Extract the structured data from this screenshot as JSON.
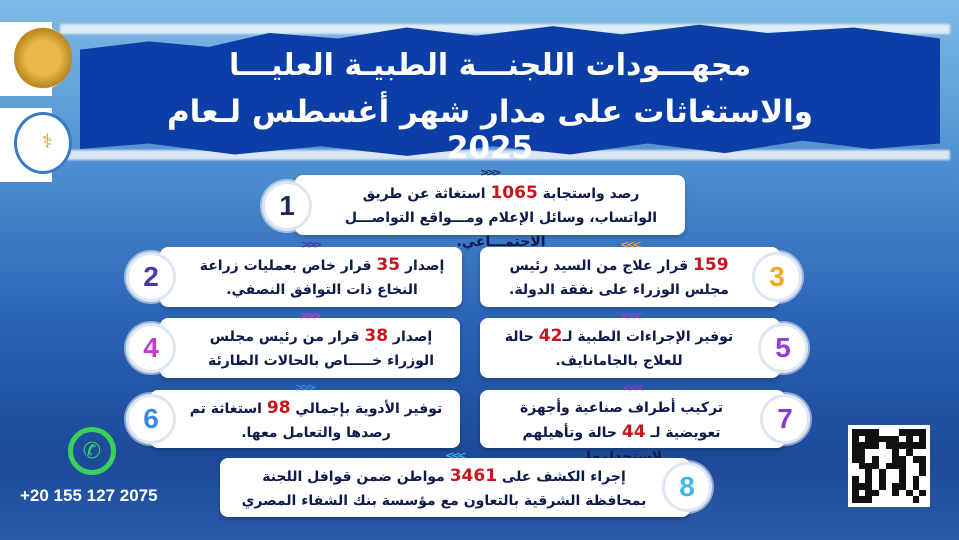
{
  "header": {
    "line1": "مجهـــودات اللجنـــة الطبيـة العليـــا",
    "line2": "والاستغاثات على مدار شهر أغسطس لـعام 2025"
  },
  "logos": [
    "egypt-eagle-emblem",
    "cabinet-medical-committee-logo"
  ],
  "cards": [
    {
      "num": "1",
      "pre": "رصد واستجابة ",
      "value": "1065",
      "post": " استغاثة عن طريق الواتساب، وسائل الإعلام ومـــواقع التواصـــل الاجتمـــاعي.",
      "color": "#1a2a5a"
    },
    {
      "num": "2",
      "pre": "إصدار ",
      "value": "35",
      "post": " قرار خاص بعمليات زراعة النخاع ذات التوافق النصفي.",
      "color": "#4a36a6"
    },
    {
      "num": "3",
      "pre": "",
      "value": "159",
      "post": " قرار علاج من السيد رئيس مجلس الوزراء على نفقة الدولة.",
      "color": "#f0a820"
    },
    {
      "num": "4",
      "pre": "إصدار ",
      "value": "38",
      "post": " قرار من رئيس مجلس الوزراء خـــــاص بالحالات الطارئة",
      "color": "#c03cd0"
    },
    {
      "num": "5",
      "pre": "توفير الإجراءات الطبية لـ",
      "value": "42",
      "post": " حالة للعلاج بالجامانايف.",
      "color": "#9a3cd8"
    },
    {
      "num": "6",
      "pre": "توفير الأدوية بإجمالي ",
      "value": "98",
      "post": " استغاثة تم رصدها والتعامل معها.",
      "color": "#3a8ae0"
    },
    {
      "num": "7",
      "pre": "تركيب أطراف صناعية وأجهزة تعويضية لـ ",
      "value": "44",
      "post": " حالة وتأهيلهم لاستخدامها.",
      "color": "#8a3cc8"
    },
    {
      "num": "8",
      "pre": "إجراء الكشف على ",
      "value": "3461",
      "post": " مواطن ضمن قوافل اللجنة بمحافظة الشرقية بالتعاون مع مؤسسة بنك الشفاء المصري",
      "color": "#40b8e8"
    }
  ],
  "contact": {
    "phone": "+20 155 127 2075",
    "icon": "whatsapp-icon"
  },
  "qr": "qr-code",
  "colors": {
    "band": "#0b3ea6",
    "highlight": "#c8141c"
  }
}
